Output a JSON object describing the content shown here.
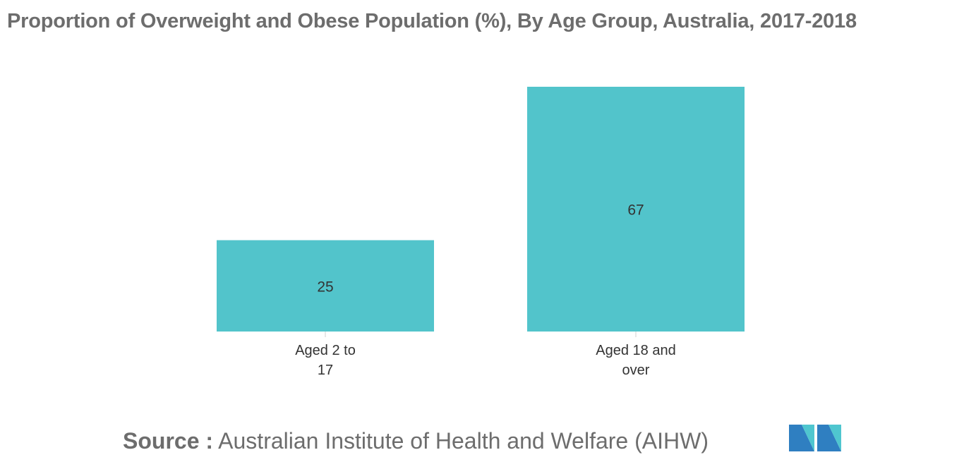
{
  "chart_data": {
    "type": "bar",
    "title": "Proportion of Overweight and Obese Population (%), By Age Group, Australia, 2017-2018",
    "categories": [
      [
        "Aged 2 to",
        "17"
      ],
      [
        "Aged 18 and",
        "over"
      ]
    ],
    "values": [
      25,
      67
    ],
    "data_labels": [
      "25",
      "67"
    ],
    "ylim": [
      0,
      67
    ],
    "grid": false,
    "legend": "none"
  },
  "source": {
    "label": "Source :",
    "text": "Australian Institute of Health and Welfare (AIHW)"
  },
  "colors": {
    "bar": "#52c4cb",
    "text": "#6d6d6d",
    "label": "#333333",
    "axis_tick": "#d0d0d0",
    "logo_dark": "#2f7fc1",
    "logo_light": "#4fc6cf"
  },
  "logo": {
    "icon": "mordor-intelligence-logo-icon"
  }
}
